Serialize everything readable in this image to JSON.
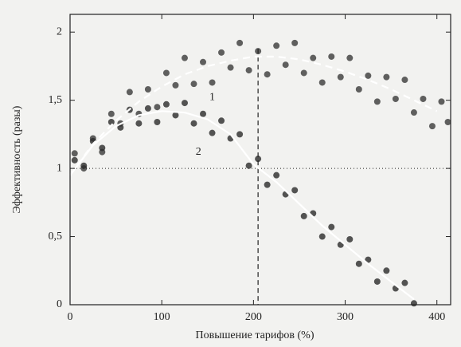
{
  "chart_data": {
    "type": "scatter",
    "xlabel": "Повышение тарифов (%)",
    "ylabel": "Эффективность (разы)",
    "xlim": [
      0,
      415
    ],
    "ylim": [
      0,
      2.13
    ],
    "xticks": [
      0,
      100,
      200,
      300,
      400
    ],
    "yticks": [
      0,
      {
        "value": 0.5,
        "label": "0,5"
      },
      1,
      {
        "value": 1.5,
        "label": "1,5"
      },
      2
    ],
    "hline": 1,
    "vline": 205,
    "annotations": [
      "1",
      "2"
    ],
    "series": [
      {
        "kind": "scatter",
        "color": "#3a3a3a",
        "x": [
          5,
          15,
          25,
          35,
          45,
          55,
          65,
          75,
          85,
          95,
          105,
          115,
          125,
          135,
          145,
          155,
          165,
          175,
          185,
          195,
          205,
          215,
          225,
          235,
          245,
          255,
          265,
          275,
          285,
          295,
          305,
          315,
          325,
          335,
          345,
          355,
          365,
          375,
          385,
          395,
          405,
          412
        ],
        "values": [
          1.11,
          1.0,
          1.22,
          1.12,
          1.4,
          1.33,
          1.56,
          1.4,
          1.58,
          1.45,
          1.7,
          1.61,
          1.81,
          1.62,
          1.78,
          1.63,
          1.85,
          1.74,
          1.92,
          1.72,
          1.86,
          1.69,
          1.9,
          1.76,
          1.92,
          1.7,
          1.81,
          1.63,
          1.82,
          1.67,
          1.81,
          1.58,
          1.68,
          1.49,
          1.67,
          1.51,
          1.65,
          1.41,
          1.51,
          1.31,
          1.49,
          1.34
        ]
      },
      {
        "kind": "scatter",
        "color": "#2a2a2a",
        "x": [
          5,
          15,
          25,
          35,
          45,
          55,
          65,
          75,
          85,
          95,
          105,
          115,
          125,
          135,
          145,
          155,
          165,
          175,
          185,
          195,
          205,
          215,
          225,
          235,
          245,
          255,
          265,
          275,
          285,
          295,
          305,
          315,
          325,
          335,
          345,
          355,
          365,
          375
        ],
        "values": [
          1.06,
          1.02,
          1.2,
          1.15,
          1.34,
          1.3,
          1.43,
          1.33,
          1.44,
          1.34,
          1.47,
          1.39,
          1.48,
          1.33,
          1.4,
          1.26,
          1.35,
          1.22,
          1.25,
          1.02,
          1.07,
          0.88,
          0.95,
          0.81,
          0.84,
          0.65,
          0.67,
          0.5,
          0.57,
          0.44,
          0.48,
          0.3,
          0.33,
          0.17,
          0.25,
          0.12,
          0.16,
          0.01
        ]
      },
      {
        "kind": "line",
        "color": "#ffffff",
        "dash": true,
        "x": [
          0,
          25,
          50,
          75,
          100,
          125,
          150,
          175,
          200,
          225,
          250,
          275,
          300,
          325,
          350,
          375,
          400
        ],
        "values": [
          0.95,
          1.18,
          1.35,
          1.49,
          1.6,
          1.69,
          1.75,
          1.79,
          1.82,
          1.82,
          1.8,
          1.76,
          1.71,
          1.65,
          1.58,
          1.5,
          1.42
        ]
      },
      {
        "kind": "line",
        "color": "#ffffff",
        "dash": false,
        "x": [
          0,
          25,
          50,
          75,
          100,
          125,
          150,
          175,
          200,
          225,
          250,
          275,
          300,
          325,
          350,
          375
        ],
        "values": [
          0.95,
          1.17,
          1.31,
          1.39,
          1.42,
          1.41,
          1.36,
          1.25,
          1.03,
          0.9,
          0.74,
          0.58,
          0.44,
          0.3,
          0.17,
          0.04
        ]
      }
    ]
  }
}
